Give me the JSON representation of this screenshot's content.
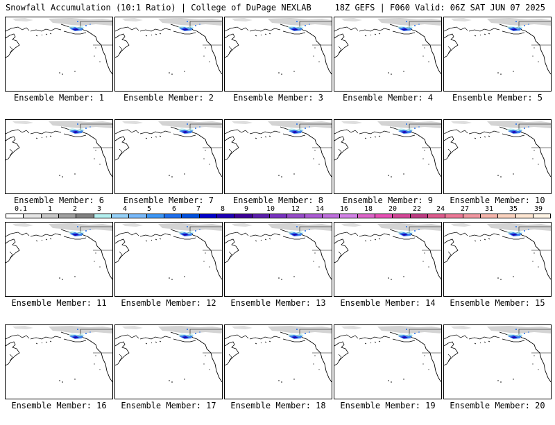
{
  "header": {
    "title": "Snowfall Accumulation (10:1 Ratio) | College of DuPage NEXLAB",
    "run_info": "18Z GEFS | F060 Valid: 06Z SAT JUN 07 2025"
  },
  "panels": [
    {
      "label": "Ensemble Member: 1"
    },
    {
      "label": "Ensemble Member: 2"
    },
    {
      "label": "Ensemble Member: 3"
    },
    {
      "label": "Ensemble Member: 4"
    },
    {
      "label": "Ensemble Member: 5"
    },
    {
      "label": "Ensemble Member: 6"
    },
    {
      "label": "Ensemble Member: 7"
    },
    {
      "label": "Ensemble Member: 8"
    },
    {
      "label": "Ensemble Member: 9"
    },
    {
      "label": "Ensemble Member: 10"
    },
    {
      "label": "Ensemble Member: 11"
    },
    {
      "label": "Ensemble Member: 12"
    },
    {
      "label": "Ensemble Member: 13"
    },
    {
      "label": "Ensemble Member: 14"
    },
    {
      "label": "Ensemble Member: 15"
    },
    {
      "label": "Ensemble Member: 16"
    },
    {
      "label": "Ensemble Member: 17"
    },
    {
      "label": "Ensemble Member: 18"
    },
    {
      "label": "Ensemble Member: 19"
    },
    {
      "label": "Ensemble Member: 20"
    }
  ],
  "colorbar": {
    "labels": [
      "0.1",
      "1",
      "2",
      "3",
      "4",
      "5",
      "6",
      "7",
      "8",
      "9",
      "10",
      "12",
      "14",
      "16",
      "18",
      "20",
      "22",
      "24",
      "27",
      "31",
      "35",
      "39"
    ],
    "colors": [
      "#ffffff",
      "#e6e6e6",
      "#c8c8c8",
      "#a0a0a0",
      "#808080",
      "#b4f0f0",
      "#96d2fa",
      "#78b9fa",
      "#3c96f5",
      "#1e6eeb",
      "#0050dc",
      "#0000c8",
      "#1e00b4",
      "#3c0096",
      "#5a1eaa",
      "#7832be",
      "#964bc8",
      "#aa5ad2",
      "#be6edc",
      "#d282e6",
      "#dc64c8",
      "#e650b4",
      "#d24696",
      "#be3c82",
      "#dc5a8c",
      "#eb7896",
      "#f096a0",
      "#f5b4aa",
      "#fad2be",
      "#fde6d2",
      "#fff5e6"
    ]
  },
  "map_colors": {
    "land_outline": "#000000",
    "snow_cover": "#c8c8c8",
    "snow_light": "#b4f0f0",
    "snow_blue": "#1e6eeb",
    "snow_dark": "#1e00b4"
  }
}
